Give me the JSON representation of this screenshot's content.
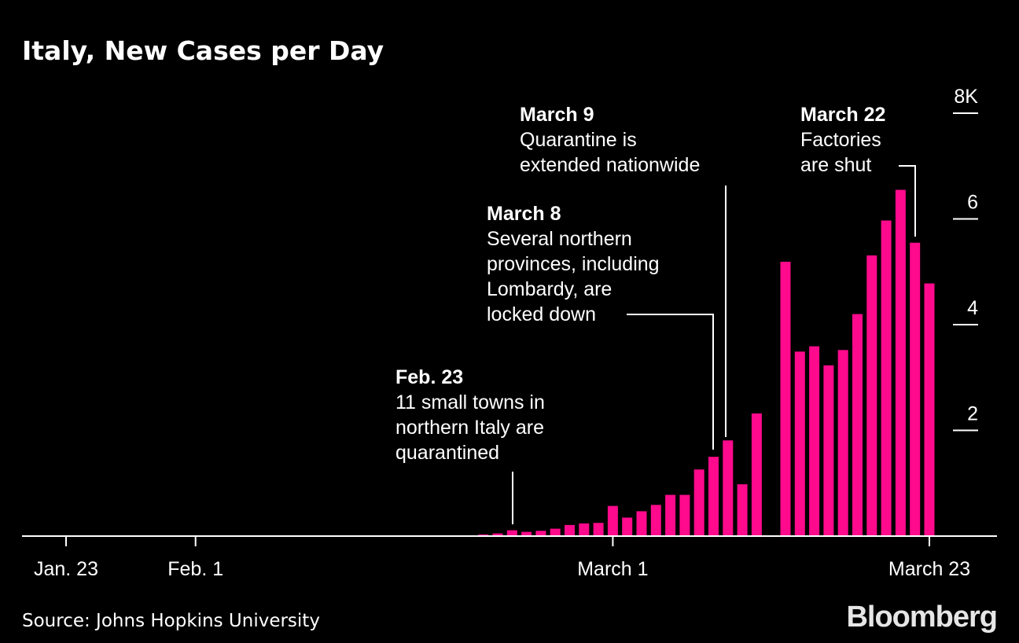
{
  "chart_data": {
    "type": "bar",
    "title": "Italy, New Cases per Day",
    "source": "Source: Johns Hopkins University",
    "brand": "Bloomberg",
    "bar_color": "#ff0a8c",
    "background": "#000000",
    "x_range": [
      "Jan. 23",
      "March 23"
    ],
    "x_ticks": [
      "Jan. 23",
      "Feb. 1",
      "March 1",
      "March 23"
    ],
    "y_ticks": [
      "2",
      "4",
      "6",
      "8K"
    ],
    "y_tick_values": [
      2000,
      4000,
      6000,
      8000
    ],
    "ylim": [
      0,
      8000
    ],
    "y_axis_side": "right",
    "grid": false,
    "categories": [
      "Feb. 21",
      "Feb. 22",
      "Feb. 23",
      "Feb. 24",
      "Feb. 25",
      "Feb. 26",
      "Feb. 27",
      "Feb. 28",
      "Feb. 29",
      "March 1",
      "March 2",
      "March 3",
      "March 4",
      "March 5",
      "March 6",
      "March 7",
      "March 8",
      "March 9",
      "March 10",
      "March 11",
      "March 12",
      "March 13",
      "March 14",
      "March 15",
      "March 16",
      "March 17",
      "March 18",
      "March 19",
      "March 20",
      "March 21",
      "March 22",
      "March 23"
    ],
    "values": [
      30,
      50,
      110,
      80,
      100,
      140,
      210,
      240,
      250,
      570,
      350,
      470,
      590,
      780,
      780,
      1260,
      1500,
      1810,
      980,
      2320,
      0,
      5190,
      3490,
      3590,
      3230,
      3520,
      4200,
      5310,
      5970,
      6550,
      5550,
      4780
    ],
    "annotations": [
      {
        "date": "Feb. 23",
        "heading": "Feb. 23",
        "lines": [
          "11 small towns in",
          "northern Italy are",
          "quarantined"
        ]
      },
      {
        "date": "March 8",
        "heading": "March 8",
        "lines": [
          "Several northern",
          "provinces, including",
          "Lombardy, are",
          "locked down"
        ]
      },
      {
        "date": "March 9",
        "heading": "March 9",
        "lines": [
          "Quarantine is",
          "extended nationwide"
        ]
      },
      {
        "date": "March 22",
        "heading": "March 22",
        "lines": [
          "Factories",
          "are shut"
        ]
      }
    ]
  }
}
